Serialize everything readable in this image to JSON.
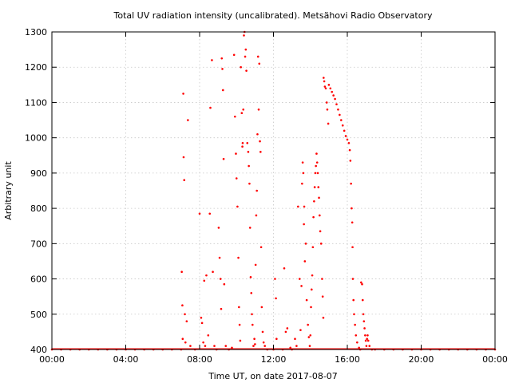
{
  "chart_data": {
    "type": "scatter",
    "title": "Total UV radiation intensity (uncalibrated). Metsähovi Radio Observatory",
    "xlabel": "Time UT, on date 2017-08-07",
    "ylabel": "Arbitrary unit",
    "xlim": [
      "00:00",
      "24:00"
    ],
    "ylim": [
      400,
      1300
    ],
    "x_ticks": [
      "00:00",
      "04:00",
      "08:00",
      "12:00",
      "16:00",
      "20:00",
      "00:00"
    ],
    "y_ticks": [
      400,
      500,
      600,
      700,
      800,
      900,
      1000,
      1100,
      1200,
      1300
    ],
    "grid": true,
    "legend": "none",
    "marker_color": "#ff0000",
    "series": [
      {
        "points": [
          [
            "00:00",
            400
          ],
          [
            "00:30",
            400
          ],
          [
            "01:00",
            400
          ],
          [
            "01:30",
            400
          ],
          [
            "02:00",
            400
          ],
          [
            "02:30",
            400
          ],
          [
            "03:00",
            400
          ],
          [
            "03:30",
            400
          ],
          [
            "04:00",
            400
          ],
          [
            "04:30",
            400
          ],
          [
            "05:00",
            400
          ],
          [
            "05:30",
            400
          ],
          [
            "06:00",
            400
          ],
          [
            "06:30",
            400
          ],
          [
            "07:00",
            400
          ],
          [
            "07:02",
            620
          ],
          [
            "07:04",
            525
          ],
          [
            "07:05",
            430
          ],
          [
            "07:07",
            1125
          ],
          [
            "07:08",
            945
          ],
          [
            "07:10",
            880
          ],
          [
            "07:12",
            500
          ],
          [
            "07:14",
            420
          ],
          [
            "07:18",
            480
          ],
          [
            "07:22",
            1050
          ],
          [
            "07:30",
            410
          ],
          [
            "07:45",
            400
          ],
          [
            "08:00",
            785
          ],
          [
            "08:05",
            490
          ],
          [
            "08:08",
            475
          ],
          [
            "08:12",
            420
          ],
          [
            "08:15",
            595
          ],
          [
            "08:18",
            410
          ],
          [
            "08:22",
            610
          ],
          [
            "08:28",
            440
          ],
          [
            "08:33",
            785
          ],
          [
            "08:35",
            1085
          ],
          [
            "08:40",
            1220
          ],
          [
            "08:43",
            620
          ],
          [
            "08:48",
            410
          ],
          [
            "08:55",
            400
          ],
          [
            "09:02",
            745
          ],
          [
            "09:05",
            660
          ],
          [
            "09:08",
            600
          ],
          [
            "09:10",
            515
          ],
          [
            "09:12",
            1225
          ],
          [
            "09:14",
            1195
          ],
          [
            "09:16",
            1135
          ],
          [
            "09:18",
            940
          ],
          [
            "09:20",
            585
          ],
          [
            "09:25",
            410
          ],
          [
            "09:35",
            400
          ],
          [
            "09:45",
            405
          ],
          [
            "09:52",
            1235
          ],
          [
            "09:55",
            1060
          ],
          [
            "09:58",
            955
          ],
          [
            "10:00",
            885
          ],
          [
            "10:03",
            805
          ],
          [
            "10:06",
            660
          ],
          [
            "10:08",
            520
          ],
          [
            "10:10",
            470
          ],
          [
            "10:12",
            425
          ],
          [
            "10:14",
            1200
          ],
          [
            "10:17",
            1070
          ],
          [
            "10:19",
            975
          ],
          [
            "10:20",
            985
          ],
          [
            "10:22",
            1080
          ],
          [
            "10:24",
            1290
          ],
          [
            "10:26",
            1300
          ],
          [
            "10:28",
            1230
          ],
          [
            "10:30",
            1250
          ],
          [
            "10:32",
            1190
          ],
          [
            "10:35",
            985
          ],
          [
            "10:38",
            960
          ],
          [
            "10:40",
            920
          ],
          [
            "10:42",
            870
          ],
          [
            "10:44",
            745
          ],
          [
            "10:46",
            605
          ],
          [
            "10:48",
            560
          ],
          [
            "10:50",
            500
          ],
          [
            "10:52",
            470
          ],
          [
            "10:55",
            410
          ],
          [
            "10:58",
            430
          ],
          [
            "11:00",
            415
          ],
          [
            "11:02",
            640
          ],
          [
            "11:04",
            780
          ],
          [
            "11:06",
            850
          ],
          [
            "11:08",
            1010
          ],
          [
            "11:10",
            1230
          ],
          [
            "11:12",
            1080
          ],
          [
            "11:14",
            1210
          ],
          [
            "11:16",
            990
          ],
          [
            "11:18",
            960
          ],
          [
            "11:20",
            690
          ],
          [
            "11:22",
            520
          ],
          [
            "11:25",
            450
          ],
          [
            "11:28",
            420
          ],
          [
            "11:32",
            410
          ],
          [
            "11:40",
            400
          ],
          [
            "12:00",
            400
          ],
          [
            "12:05",
            600
          ],
          [
            "12:08",
            545
          ],
          [
            "12:10",
            430
          ],
          [
            "12:30",
            400
          ],
          [
            "12:35",
            630
          ],
          [
            "12:40",
            450
          ],
          [
            "12:45",
            460
          ],
          [
            "12:55",
            405
          ],
          [
            "13:00",
            400
          ],
          [
            "13:10",
            430
          ],
          [
            "13:15",
            410
          ],
          [
            "13:20",
            805
          ],
          [
            "13:25",
            600
          ],
          [
            "13:28",
            455
          ],
          [
            "13:31",
            580
          ],
          [
            "13:33",
            870
          ],
          [
            "13:35",
            930
          ],
          [
            "13:37",
            900
          ],
          [
            "13:39",
            755
          ],
          [
            "13:40",
            805
          ],
          [
            "13:42",
            650
          ],
          [
            "13:45",
            700
          ],
          [
            "13:48",
            540
          ],
          [
            "13:52",
            470
          ],
          [
            "13:55",
            435
          ],
          [
            "13:58",
            410
          ],
          [
            "14:00",
            440
          ],
          [
            "14:02",
            520
          ],
          [
            "14:04",
            570
          ],
          [
            "14:06",
            610
          ],
          [
            "14:08",
            690
          ],
          [
            "14:10",
            775
          ],
          [
            "14:12",
            820
          ],
          [
            "14:14",
            860
          ],
          [
            "14:16",
            900
          ],
          [
            "14:18",
            920
          ],
          [
            "14:20",
            955
          ],
          [
            "14:22",
            930
          ],
          [
            "14:24",
            900
          ],
          [
            "14:26",
            860
          ],
          [
            "14:28",
            830
          ],
          [
            "14:30",
            780
          ],
          [
            "14:32",
            735
          ],
          [
            "14:35",
            700
          ],
          [
            "14:38",
            600
          ],
          [
            "14:40",
            550
          ],
          [
            "14:42",
            490
          ],
          [
            "14:43",
            1170
          ],
          [
            "14:45",
            1160
          ],
          [
            "14:47",
            1145
          ],
          [
            "14:50",
            1140
          ],
          [
            "14:53",
            1100
          ],
          [
            "14:55",
            1080
          ],
          [
            "14:58",
            1040
          ],
          [
            "15:00",
            1150
          ],
          [
            "15:05",
            1140
          ],
          [
            "15:10",
            1130
          ],
          [
            "15:15",
            1120
          ],
          [
            "15:20",
            1110
          ],
          [
            "15:25",
            1095
          ],
          [
            "15:30",
            1080
          ],
          [
            "15:35",
            1065
          ],
          [
            "15:40",
            1050
          ],
          [
            "15:45",
            1035
          ],
          [
            "15:50",
            1020
          ],
          [
            "15:55",
            1005
          ],
          [
            "16:00",
            995
          ],
          [
            "16:05",
            985
          ],
          [
            "16:08",
            965
          ],
          [
            "16:10",
            935
          ],
          [
            "16:12",
            870
          ],
          [
            "16:14",
            800
          ],
          [
            "16:16",
            760
          ],
          [
            "16:17",
            690
          ],
          [
            "16:18",
            600
          ],
          [
            "16:20",
            540
          ],
          [
            "16:22",
            500
          ],
          [
            "16:25",
            470
          ],
          [
            "16:28",
            440
          ],
          [
            "16:32",
            420
          ],
          [
            "16:38",
            405
          ],
          [
            "16:42",
            400
          ],
          [
            "16:45",
            590
          ],
          [
            "16:48",
            585
          ],
          [
            "16:50",
            540
          ],
          [
            "16:52",
            500
          ],
          [
            "16:54",
            480
          ],
          [
            "16:56",
            460
          ],
          [
            "16:58",
            440
          ],
          [
            "17:00",
            425
          ],
          [
            "17:02",
            410
          ],
          [
            "17:04",
            430
          ],
          [
            "17:06",
            440
          ],
          [
            "17:08",
            425
          ],
          [
            "17:12",
            410
          ],
          [
            "17:20",
            400
          ],
          [
            "17:30",
            400
          ],
          [
            "18:00",
            400
          ],
          [
            "18:30",
            400
          ],
          [
            "19:00",
            400
          ],
          [
            "19:30",
            400
          ],
          [
            "20:00",
            400
          ],
          [
            "20:30",
            400
          ],
          [
            "21:00",
            400
          ],
          [
            "21:30",
            400
          ],
          [
            "22:00",
            400
          ],
          [
            "22:30",
            400
          ],
          [
            "23:00",
            400
          ],
          [
            "23:30",
            400
          ],
          [
            "24:00",
            400
          ]
        ]
      }
    ]
  }
}
